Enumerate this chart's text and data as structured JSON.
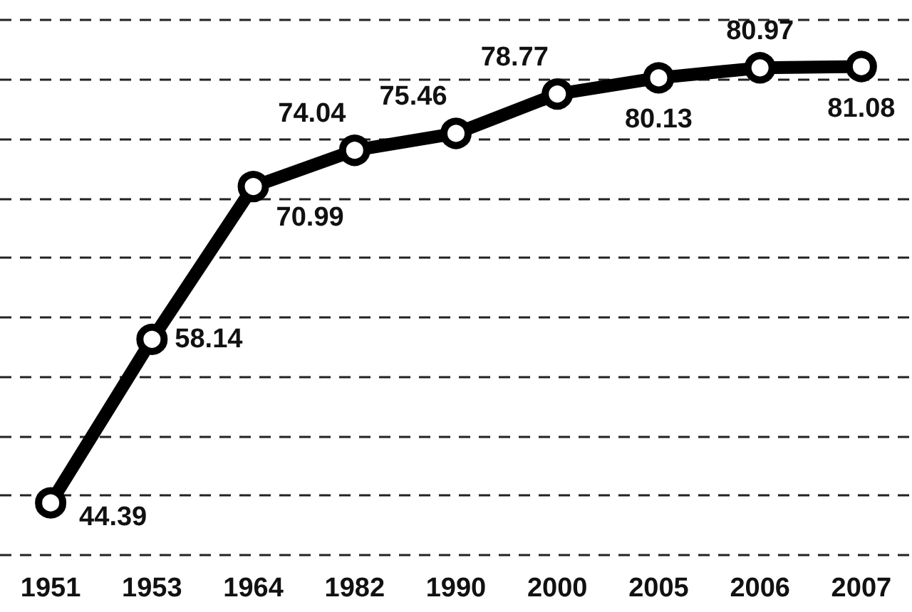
{
  "chart_data": {
    "type": "line",
    "categories": [
      "1951",
      "1953",
      "1964",
      "1982",
      "1990",
      "2000",
      "2005",
      "2006",
      "2007"
    ],
    "series": [
      {
        "color": "#000000",
        "values": [
          44.39,
          58.14,
          70.99,
          74.04,
          75.46,
          78.77,
          80.13,
          80.97,
          81.08
        ]
      }
    ],
    "yticks": [
      {
        "value": 40,
        "label": null
      },
      {
        "value": 45,
        "label": null
      },
      {
        "value": 50,
        "label": null
      },
      {
        "value": 55,
        "label": null
      },
      {
        "value": 60,
        "label": null
      },
      {
        "value": 65,
        "label": null
      },
      {
        "value": 70,
        "label": null
      },
      {
        "value": 75,
        "label": null
      },
      {
        "value": 80,
        "label": null
      },
      {
        "value": 85,
        "label": null
      }
    ],
    "grid": "y",
    "data_labels": true,
    "marker": "circle",
    "line_style": "solid",
    "tick_labels": "x"
  }
}
